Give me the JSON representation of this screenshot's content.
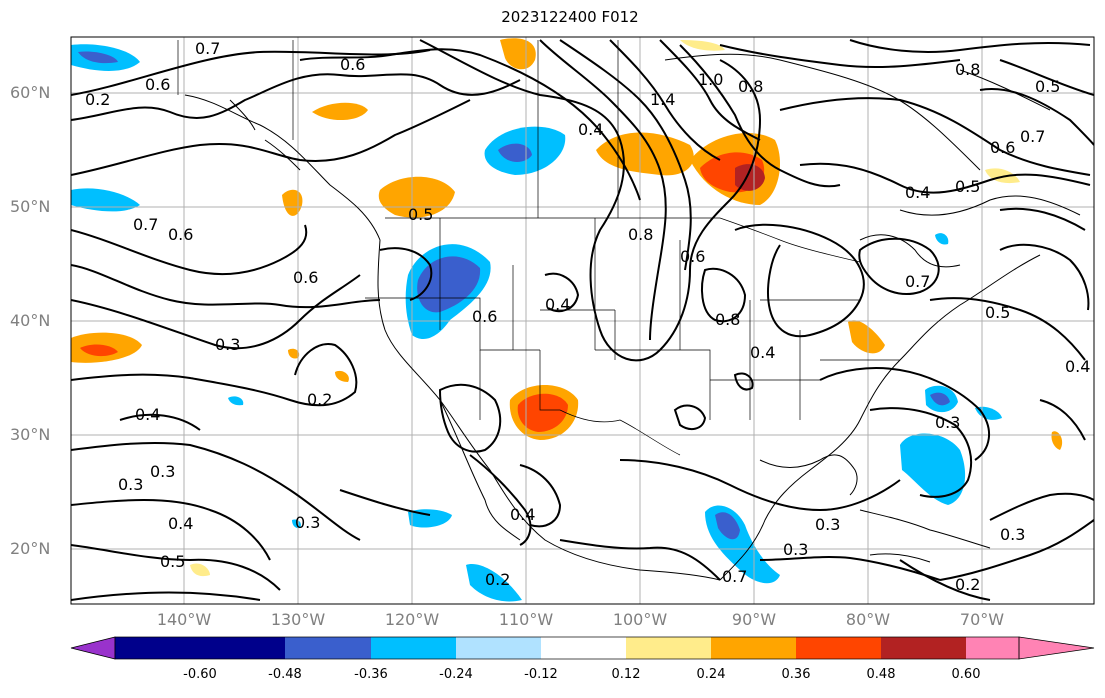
{
  "title": "2023122400 F012",
  "lat_labels": [
    "60°N",
    "50°N",
    "40°N",
    "30°N",
    "20°N"
  ],
  "lon_labels": [
    "140°W",
    "130°W",
    "120°W",
    "110°W",
    "100°W",
    "90°W",
    "80°W",
    "70°W"
  ],
  "colorbar": {
    "ticks": [
      "-0.60",
      "-0.48",
      "-0.36",
      "-0.24",
      "-0.12",
      "0.12",
      "0.24",
      "0.36",
      "0.48",
      "0.60"
    ],
    "colors": [
      "#9932cc",
      "#00008b",
      "#3a5fcd",
      "#00bfff",
      "#b0e2ff",
      "#ffffff",
      "#ffec8b",
      "#ffa500",
      "#ff4500",
      "#b22222",
      "#ff83b4"
    ]
  },
  "contour_labels": [
    "0.7",
    "0.6",
    "0.6",
    "0.5",
    "0.6",
    "0.8",
    "1.0",
    "1.4",
    "0.4",
    "0.5",
    "0.3",
    "0.2",
    "0.4",
    "0.3",
    "0.3",
    "0.4",
    "0.5",
    "0.6",
    "0.7",
    "0.8",
    "0.4",
    "0.6",
    "0.8",
    "0.4",
    "0.7",
    "0.5",
    "0.4",
    "0.3",
    "0.3",
    "0.4",
    "0.2",
    "0.2",
    "0.3",
    "0.7",
    "0.6",
    "0.8",
    "0.7",
    "0.5",
    "0.4",
    "0.3",
    "0.2",
    "0.6",
    "0.3"
  ]
}
